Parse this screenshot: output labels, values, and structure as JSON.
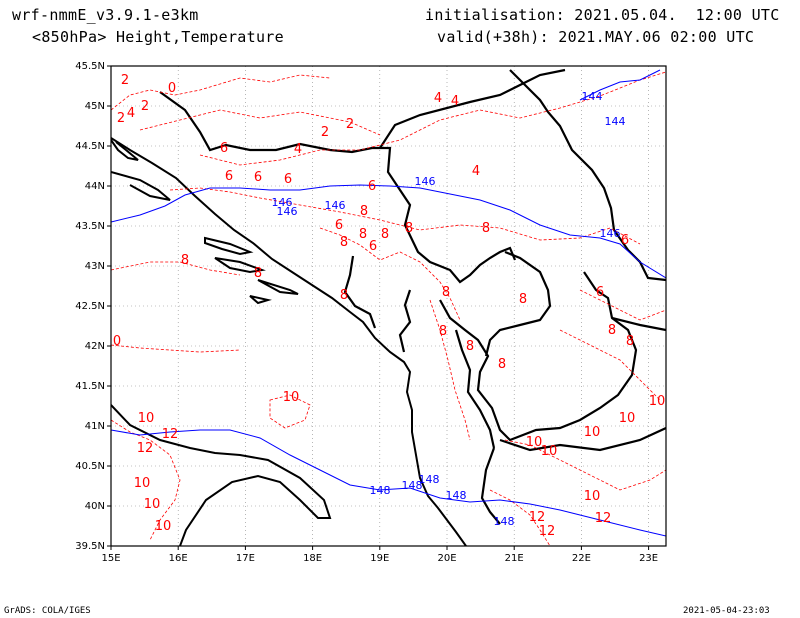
{
  "header": {
    "model": "wrf-nmmE_v3.9.1-e3km",
    "field": "<850hPa> Height,Temperature",
    "init": "initialisation: 2021.05.04.  12:00 UTC",
    "valid": "valid(+38h): 2021.MAY.06 02:00 UTC"
  },
  "footer": {
    "left": "GrADS: COLA/IGES",
    "right": "2021-05-04-23:03"
  },
  "axes": {
    "lat_labels": [
      "45.5N",
      "45N",
      "44.5N",
      "44N",
      "43.5N",
      "43N",
      "42.5N",
      "42N",
      "41.5N",
      "41N",
      "40.5N",
      "40N",
      "39.5N"
    ],
    "lon_labels": [
      "15E",
      "16E",
      "17E",
      "18E",
      "19E",
      "20E",
      "21E",
      "22E",
      "23E"
    ]
  },
  "colors": {
    "temperature": "#ff0000",
    "height": "#0000ff",
    "coast": "#000000",
    "grid": "#888888"
  },
  "height_labels": [
    "144",
    "144",
    "146",
    "146",
    "146",
    "146",
    "146",
    "148",
    "148",
    "148",
    "148",
    "148"
  ],
  "temp_labels": [
    "0",
    "2",
    "2",
    "4",
    "2",
    "4",
    "4",
    "2",
    "2",
    "4",
    "6",
    "6",
    "6",
    "6",
    "6",
    "6",
    "6",
    "8",
    "8",
    "8",
    "8",
    "8",
    "8",
    "8",
    "8",
    "8",
    "8",
    "6",
    "6",
    "8",
    "8",
    "8",
    "8",
    "10",
    "10",
    "12",
    "12",
    "10",
    "10",
    "10",
    "10",
    "10",
    "10",
    "12",
    "12",
    "10",
    "10",
    "8",
    "0",
    "10",
    "12",
    "4",
    "8"
  ]
}
